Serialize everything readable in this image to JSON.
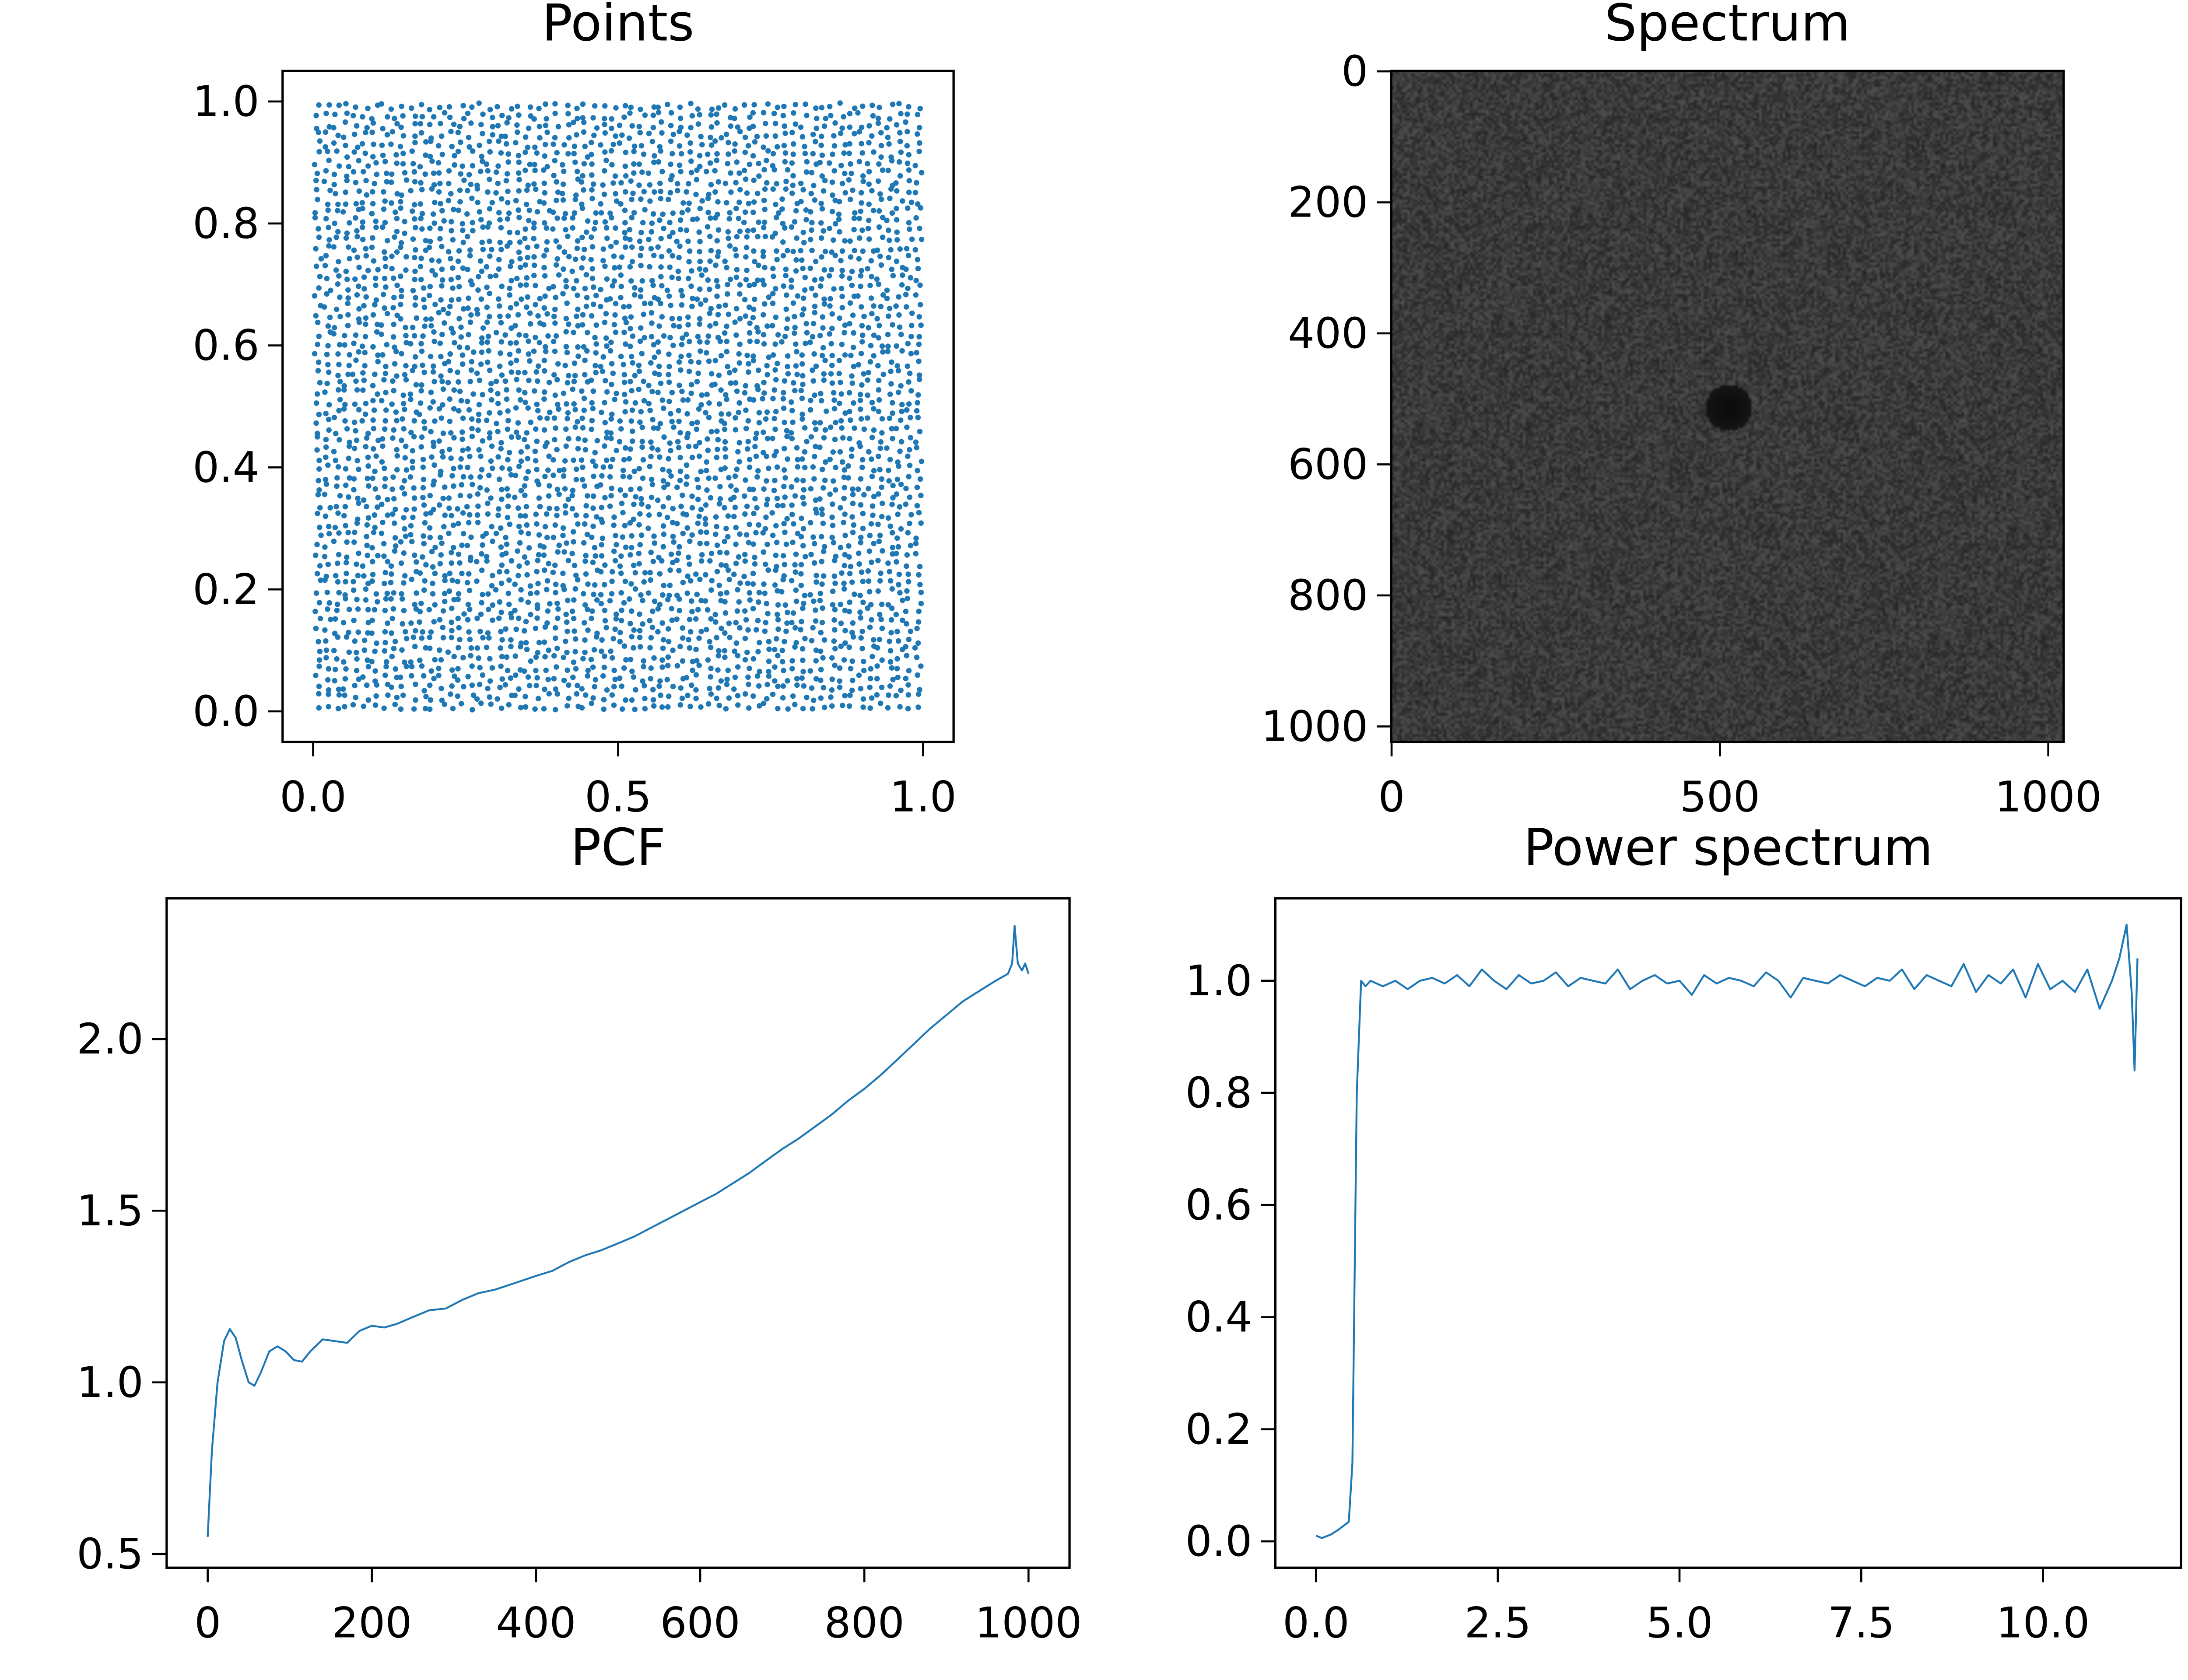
{
  "figure": {
    "line_color": "#1f77b4",
    "point_color": "#1f77b4"
  },
  "chart_data": [
    {
      "id": "points",
      "type": "scatter",
      "title": "Points",
      "xlim": [
        -0.05,
        1.05
      ],
      "ylim": [
        -0.05,
        1.05
      ],
      "xticks": [
        0.0,
        0.5,
        1.0
      ],
      "xticklabels": [
        "0.0",
        "0.5",
        "1.0"
      ],
      "yticks": [
        0.0,
        0.2,
        0.4,
        0.6,
        0.8,
        1.0
      ],
      "yticklabels": [
        "0.0",
        "0.2",
        "0.4",
        "0.6",
        "0.8",
        "1.0"
      ],
      "distribution": "blue-noise in unit square",
      "n_points": 4096
    },
    {
      "id": "spectrum",
      "type": "heatmap",
      "title": "Spectrum",
      "xlim": [
        -0.5,
        1023.5
      ],
      "ylim": [
        1023.5,
        -0.5
      ],
      "xticks": [
        0,
        500,
        1000
      ],
      "xticklabels": [
        "0",
        "500",
        "1000"
      ],
      "yticks": [
        0,
        200,
        400,
        600,
        800,
        1000
      ],
      "yticklabels": [
        "0",
        "200",
        "400",
        "600",
        "800",
        "1000"
      ],
      "background_level": 0.23,
      "noise_level": 0.08,
      "center": [
        512,
        512
      ],
      "dark_disk_radius": 35
    },
    {
      "id": "pcf",
      "type": "line",
      "title": "PCF",
      "xlim": [
        -50,
        1050
      ],
      "ylim": [
        0.46,
        2.41
      ],
      "xticks": [
        0,
        200,
        400,
        600,
        800,
        1000
      ],
      "xticklabels": [
        "0",
        "200",
        "400",
        "600",
        "800",
        "1000"
      ],
      "yticks": [
        0.5,
        1.0,
        1.5,
        2.0
      ],
      "yticklabels": [
        "0.5",
        "1.0",
        "1.5",
        "2.0"
      ],
      "points": [
        [
          0,
          0.55
        ],
        [
          5,
          0.8
        ],
        [
          12,
          1.0
        ],
        [
          20,
          1.12
        ],
        [
          27,
          1.155
        ],
        [
          34,
          1.13
        ],
        [
          42,
          1.06
        ],
        [
          50,
          1.0
        ],
        [
          57,
          0.99
        ],
        [
          65,
          1.03
        ],
        [
          75,
          1.09
        ],
        [
          85,
          1.105
        ],
        [
          95,
          1.09
        ],
        [
          105,
          1.065
        ],
        [
          115,
          1.06
        ],
        [
          125,
          1.09
        ],
        [
          140,
          1.125
        ],
        [
          155,
          1.12
        ],
        [
          170,
          1.115
        ],
        [
          185,
          1.15
        ],
        [
          200,
          1.165
        ],
        [
          215,
          1.16
        ],
        [
          230,
          1.17
        ],
        [
          250,
          1.19
        ],
        [
          270,
          1.21
        ],
        [
          290,
          1.215
        ],
        [
          310,
          1.24
        ],
        [
          330,
          1.26
        ],
        [
          350,
          1.27
        ],
        [
          375,
          1.29
        ],
        [
          400,
          1.31
        ],
        [
          420,
          1.325
        ],
        [
          440,
          1.35
        ],
        [
          460,
          1.37
        ],
        [
          480,
          1.385
        ],
        [
          500,
          1.405
        ],
        [
          520,
          1.425
        ],
        [
          540,
          1.45
        ],
        [
          560,
          1.475
        ],
        [
          580,
          1.5
        ],
        [
          600,
          1.525
        ],
        [
          620,
          1.55
        ],
        [
          640,
          1.58
        ],
        [
          660,
          1.61
        ],
        [
          680,
          1.645
        ],
        [
          700,
          1.68
        ],
        [
          720,
          1.71
        ],
        [
          740,
          1.745
        ],
        [
          760,
          1.78
        ],
        [
          780,
          1.82
        ],
        [
          800,
          1.855
        ],
        [
          820,
          1.895
        ],
        [
          840,
          1.94
        ],
        [
          860,
          1.985
        ],
        [
          880,
          2.03
        ],
        [
          900,
          2.07
        ],
        [
          920,
          2.11
        ],
        [
          940,
          2.14
        ],
        [
          960,
          2.17
        ],
        [
          975,
          2.19
        ],
        [
          980,
          2.22
        ],
        [
          983,
          2.33
        ],
        [
          987,
          2.22
        ],
        [
          992,
          2.2
        ],
        [
          996,
          2.22
        ],
        [
          1000,
          2.19
        ]
      ]
    },
    {
      "id": "power-spectrum",
      "type": "line",
      "title": "Power spectrum",
      "xlim": [
        -0.56,
        11.9
      ],
      "ylim": [
        -0.047,
        1.147
      ],
      "xticks": [
        0.0,
        2.5,
        5.0,
        7.5,
        10.0
      ],
      "xticklabels": [
        "0.0",
        "2.5",
        "5.0",
        "7.5",
        "10.0"
      ],
      "yticks": [
        0.0,
        0.2,
        0.4,
        0.6,
        0.8,
        1.0
      ],
      "yticklabels": [
        "0.0",
        "0.2",
        "0.4",
        "0.6",
        "0.8",
        "1.0"
      ],
      "head": [
        [
          0,
          0.01
        ],
        [
          0.08,
          0.006
        ],
        [
          0.2,
          0.012
        ],
        [
          0.3,
          0.02
        ],
        [
          0.45,
          0.035
        ],
        [
          0.5,
          0.14
        ],
        [
          0.56,
          0.8
        ],
        [
          0.62,
          1.0
        ],
        [
          0.68,
          0.99
        ]
      ],
      "x": [
        0.75,
        0.92,
        1.09,
        1.26,
        1.43,
        1.6,
        1.77,
        1.94,
        2.11,
        2.28,
        2.45,
        2.62,
        2.79,
        2.96,
        3.13,
        3.3,
        3.47,
        3.64,
        3.81,
        3.98,
        4.15,
        4.32,
        4.49,
        4.66,
        4.83,
        5.0,
        5.17,
        5.34,
        5.51,
        5.68,
        5.85,
        6.02,
        6.19,
        6.36,
        6.53,
        6.7,
        6.87,
        7.04,
        7.21,
        7.38,
        7.55,
        7.72,
        7.89,
        8.06,
        8.23,
        8.4,
        8.57,
        8.74,
        8.91,
        9.08,
        9.25,
        9.42,
        9.59,
        9.76,
        9.93,
        10.1,
        10.27,
        10.44,
        10.61,
        10.78,
        10.95
      ],
      "y": [
        1.0,
        0.99,
        1.0,
        0.985,
        1.0,
        1.005,
        0.995,
        1.01,
        0.99,
        1.02,
        1.0,
        0.985,
        1.01,
        0.995,
        1.0,
        1.015,
        0.99,
        1.005,
        1.0,
        0.995,
        1.02,
        0.985,
        1.0,
        1.01,
        0.995,
        1.0,
        0.975,
        1.01,
        0.995,
        1.005,
        1.0,
        0.99,
        1.015,
        1.0,
        0.97,
        1.005,
        1.0,
        0.995,
        1.01,
        1.0,
        0.99,
        1.005,
        1.0,
        1.02,
        0.985,
        1.01,
        1.0,
        0.99,
        1.03,
        0.98,
        1.01,
        0.995,
        1.02,
        0.97,
        1.03,
        0.985,
        1.0,
        0.98,
        1.02,
        0.95,
        1.0
      ],
      "tail": [
        [
          11.05,
          1.04
        ],
        [
          11.15,
          1.1
        ],
        [
          11.22,
          0.98
        ],
        [
          11.26,
          0.84
        ],
        [
          11.3,
          1.04
        ]
      ]
    }
  ]
}
